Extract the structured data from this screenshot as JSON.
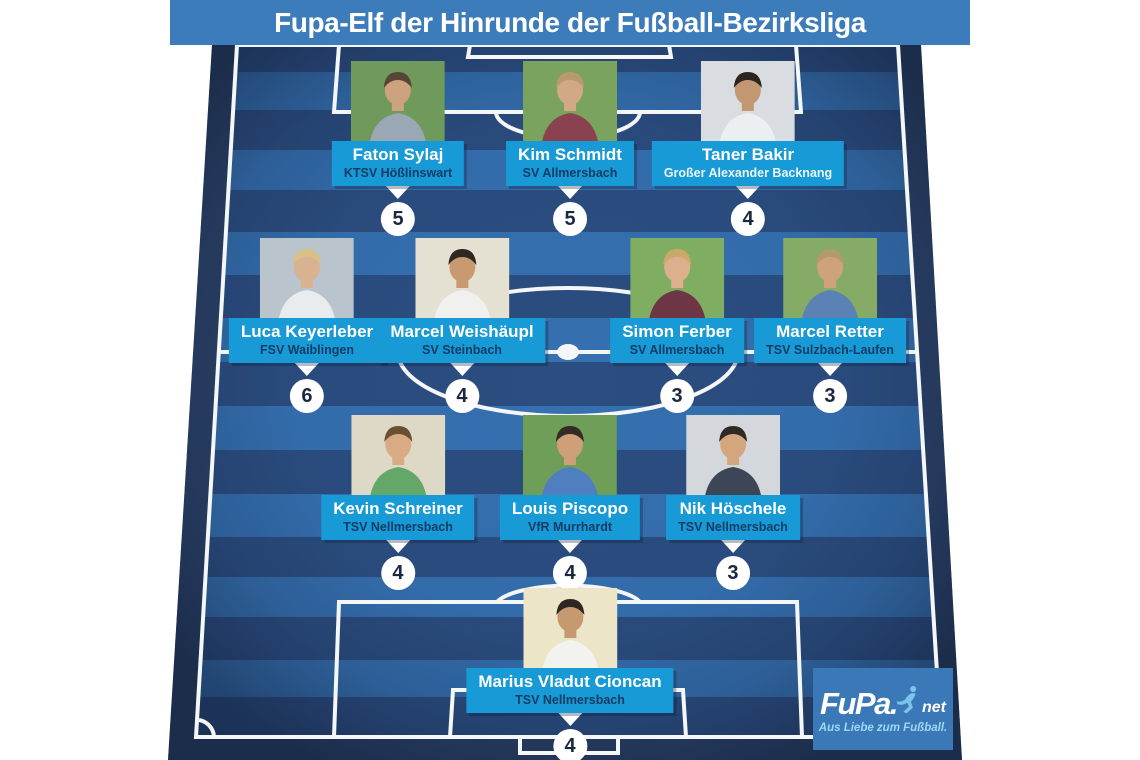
{
  "header": {
    "title": "Fupa-Elf der Hinrunde der Fußball-Bezirksliga"
  },
  "colors": {
    "page_bg": "#ffffff",
    "header_bg": "#3d7cba",
    "pitch_border": "#2a4166",
    "stripe_dark": "#2b4d80",
    "stripe_light": "#3570b0",
    "line": "#f4f6f8",
    "label_bg": "#189ad6",
    "label_name": "#ffffff",
    "label_club": "#113d66",
    "label_club_light": "#e9f6fd",
    "badge_bg": "#ffffff",
    "badge_text": "#1b2740",
    "logo_bg": "#3a78b8",
    "logo_accent": "#9ed7f4"
  },
  "formation": {
    "rows": [
      {
        "name": "forwards",
        "players": [
          {
            "name": "Faton Sylaj",
            "club": "KTSV Hößlinswart",
            "rating": "5",
            "club_light": false,
            "photo": {
              "bg": "#6f9a5c",
              "shirt": "#9aa7b4",
              "skin": "#cda27e",
              "hair": "#574635"
            }
          },
          {
            "name": "Kim Schmidt",
            "club": "SV Allmersbach",
            "rating": "5",
            "club_light": false,
            "photo": {
              "bg": "#7aa45e",
              "shirt": "#8a4150",
              "skin": "#d2a887",
              "hair": "#b89b6c"
            }
          },
          {
            "name": "Taner Bakir",
            "club": "Großer Alexander Backnang",
            "rating": "4",
            "club_light": true,
            "photo": {
              "bg": "#d9dce0",
              "shirt": "#eceff2",
              "skin": "#c29772",
              "hair": "#2b2420"
            }
          }
        ]
      },
      {
        "name": "midfielders",
        "players": [
          {
            "name": "Luca Keyerleber",
            "club": "FSV Waiblingen",
            "rating": "6",
            "club_light": false,
            "photo": {
              "bg": "#b9c4cc",
              "shirt": "#e8ecef",
              "skin": "#d9b291",
              "hair": "#d9c084"
            }
          },
          {
            "name": "Marcel Weishäupl",
            "club": "SV Steinbach",
            "rating": "4",
            "club_light": false,
            "photo": {
              "bg": "#e4e0d2",
              "shirt": "#f0f0ee",
              "skin": "#c99a6f",
              "hair": "#2e2722"
            }
          },
          {
            "name": "Simon Ferber",
            "club": "SV Allmersbach",
            "rating": "3",
            "club_light": false,
            "photo": {
              "bg": "#7fae62",
              "shirt": "#6e3644",
              "skin": "#dcb08c",
              "hair": "#caa96a"
            }
          },
          {
            "name": "Marcel Retter",
            "club": "TSV Sulzbach-Laufen",
            "rating": "3",
            "club_light": false,
            "photo": {
              "bg": "#85ab66",
              "shirt": "#5b82b5",
              "skin": "#cfa379",
              "hair": "#b09a6e"
            }
          }
        ]
      },
      {
        "name": "defenders",
        "players": [
          {
            "name": "Kevin Schreiner",
            "club": "TSV Nellmersbach",
            "rating": "4",
            "club_light": false,
            "photo": {
              "bg": "#ded8c6",
              "shirt": "#63a868",
              "skin": "#d8ab84",
              "hair": "#6b4f33"
            }
          },
          {
            "name": "Louis Piscopo",
            "club": "VfR Murrhardt",
            "rating": "4",
            "club_light": false,
            "photo": {
              "bg": "#6e9e57",
              "shirt": "#4f7fc0",
              "skin": "#cfa077",
              "hair": "#332b24"
            }
          },
          {
            "name": "Nik Höschele",
            "club": "TSV Nellmersbach",
            "rating": "3",
            "club_light": false,
            "photo": {
              "bg": "#d4d8dc",
              "shirt": "#3c4656",
              "skin": "#d3a67e",
              "hair": "#2f2a26"
            }
          }
        ]
      },
      {
        "name": "goalkeeper",
        "players": [
          {
            "name": "Marius Vladut Cioncan",
            "club": "TSV Nellmersbach",
            "rating": "4",
            "club_light": false,
            "photo": {
              "bg": "#ece5c8",
              "shirt": "#f2f2ee",
              "skin": "#c59a70",
              "hair": "#2d2622"
            }
          }
        ]
      }
    ]
  },
  "branding": {
    "logo_text": "FuPa.",
    "logo_tld": "net",
    "tagline": "Aus Liebe zum Fußball.",
    "icon": "footballer-silhouette"
  }
}
